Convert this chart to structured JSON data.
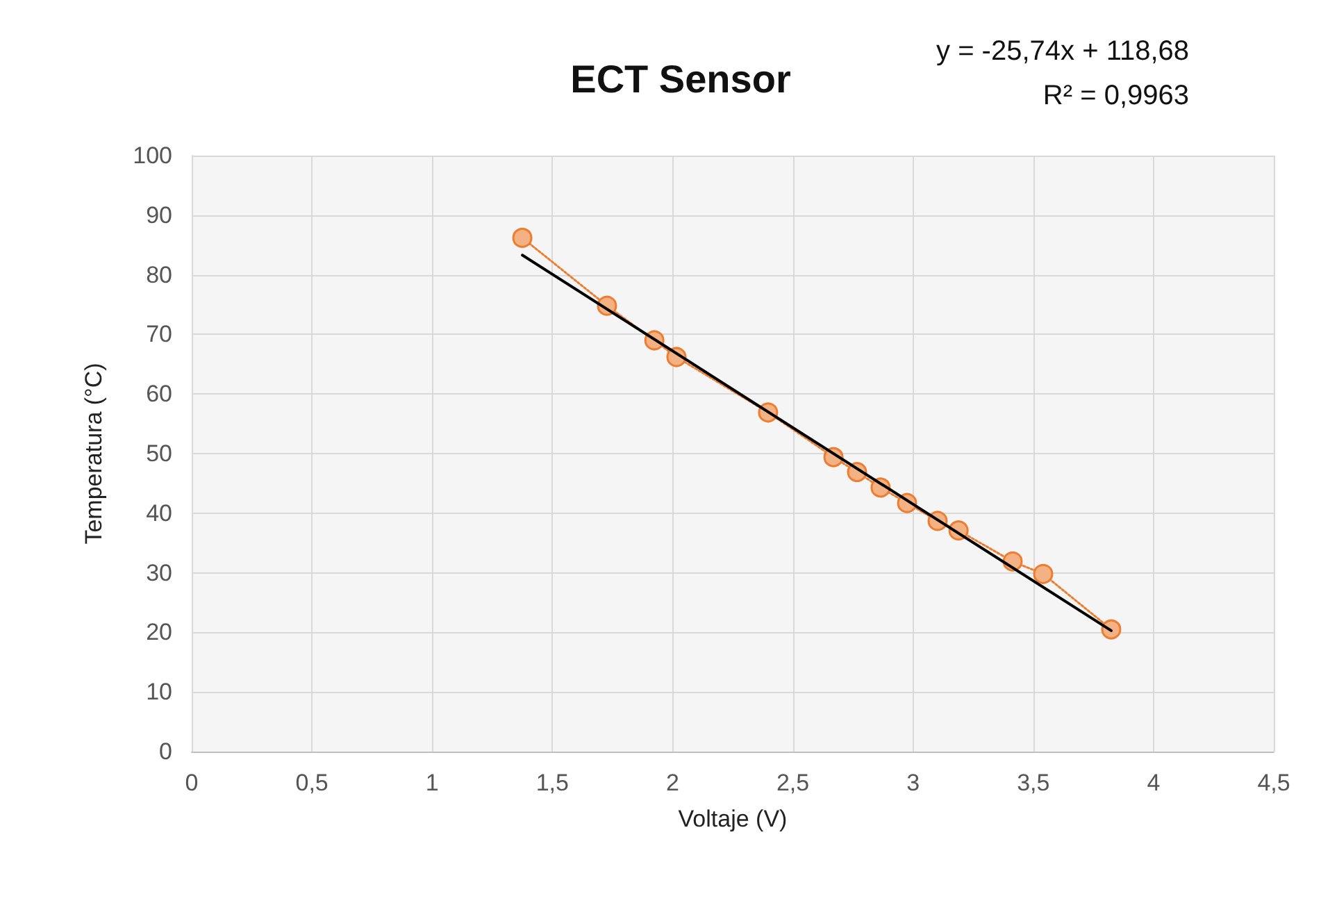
{
  "chart_data": {
    "type": "line",
    "title": "ECT Sensor",
    "xlabel": "Voltaje (V)",
    "ylabel": "Temperatura (°C)",
    "annotations": [
      "y = -25,74x + 118,68",
      "R² = 0,9963"
    ],
    "series": [
      {
        "color": "#f4b183",
        "marker": "circle",
        "line_style": "dotted",
        "x": [
          1.375,
          1.727,
          1.924,
          2.016,
          2.397,
          2.669,
          2.767,
          2.865,
          2.975,
          3.102,
          3.189,
          3.414,
          3.541,
          3.824
        ],
        "values": [
          86.2,
          74.8,
          69.0,
          66.2,
          56.9,
          49.4,
          46.9,
          44.3,
          41.7,
          38.7,
          37.1,
          31.9,
          29.8,
          20.5
        ]
      },
      {
        "color": "#000000",
        "marker": "none",
        "line_style": "solid",
        "x": [
          1.375,
          3.824
        ],
        "values": [
          83.3,
          20.3
        ]
      }
    ],
    "xlim": [
      0,
      4.5
    ],
    "xticks": [
      0,
      {
        "value": 0.5,
        "label": "0,5"
      },
      1,
      {
        "value": 1.5,
        "label": "1,5"
      },
      2,
      {
        "value": 2.5,
        "label": "2,5"
      },
      3,
      {
        "value": 3.5,
        "label": "3,5"
      },
      4,
      {
        "value": 4.5,
        "label": "4,5"
      }
    ],
    "ylim": [
      0,
      100
    ],
    "yticks": [
      0,
      10,
      20,
      30,
      40,
      50,
      60,
      70,
      80,
      90,
      100
    ],
    "grid": true
  }
}
